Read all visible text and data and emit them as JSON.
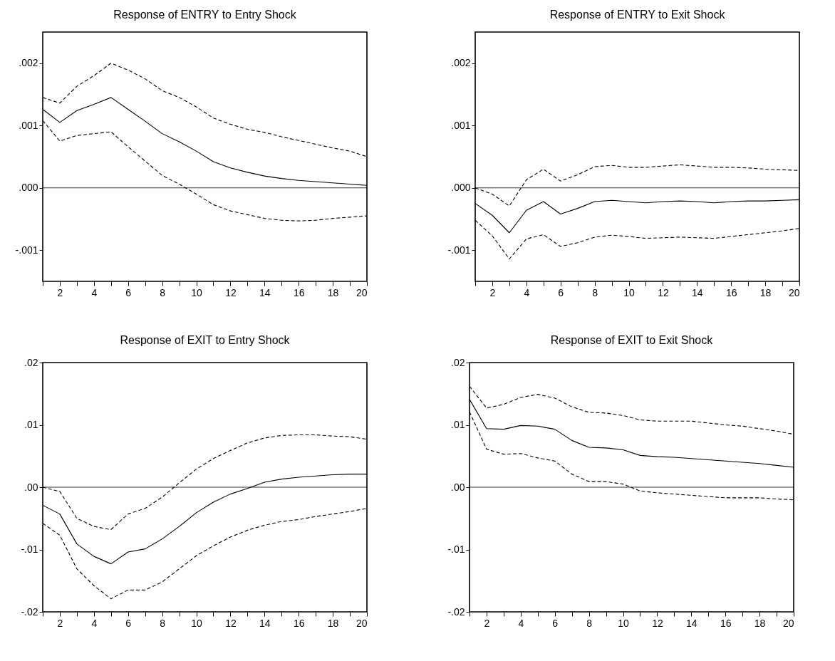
{
  "chart_data": [
    {
      "type": "line",
      "title": "Response of ENTRY to Entry Shock",
      "x": [
        1,
        2,
        3,
        4,
        5,
        6,
        7,
        8,
        9,
        10,
        11,
        12,
        13,
        14,
        15,
        16,
        17,
        18,
        19,
        20
      ],
      "xlim": [
        1,
        20
      ],
      "xticks": [
        {
          "value": 1,
          "label": null
        },
        2,
        {
          "value": 3,
          "label": null
        },
        4,
        {
          "value": 5,
          "label": null
        },
        6,
        {
          "value": 7,
          "label": null
        },
        8,
        {
          "value": 9,
          "label": null
        },
        10,
        {
          "value": 11,
          "label": null
        },
        12,
        {
          "value": 13,
          "label": null
        },
        14,
        {
          "value": 15,
          "label": null
        },
        16,
        {
          "value": 17,
          "label": null
        },
        18,
        {
          "value": 19,
          "label": null
        },
        20
      ],
      "ylim": [
        -0.0015,
        0.0025
      ],
      "yticks": [
        {
          "value": -0.001,
          "label": "-.001"
        },
        {
          "value": 0,
          "label": ".000"
        },
        {
          "value": 0.001,
          "label": ".001"
        },
        {
          "value": 0.002,
          "label": ".002"
        }
      ],
      "grid": false,
      "marker": "none",
      "ref_lines": [
        {
          "axis": "y",
          "value": 0
        }
      ],
      "series": [
        {
          "color": "#000000",
          "line_style": "solid",
          "values": [
            0.00126,
            0.00105,
            0.00124,
            0.00134,
            0.00145,
            0.00126,
            0.00107,
            0.00087,
            0.00074,
            0.00059,
            0.00042,
            0.00032,
            0.00025,
            0.00019,
            0.00015,
            0.00012,
            0.0001,
            8e-05,
            6e-05,
            4e-05
          ]
        },
        {
          "color": "#000000",
          "line_style": "dashed",
          "values": [
            0.00145,
            0.00136,
            0.00163,
            0.0018,
            0.002,
            0.00189,
            0.00175,
            0.00156,
            0.00145,
            0.0013,
            0.00112,
            0.00102,
            0.00094,
            0.00089,
            0.00082,
            0.00076,
            0.0007,
            0.00064,
            0.00059,
            0.0005
          ]
        },
        {
          "color": "#000000",
          "line_style": "dashed",
          "values": [
            0.00108,
            0.00075,
            0.00084,
            0.00087,
            0.0009,
            0.00066,
            0.00043,
            0.0002,
            6e-05,
            -0.0001,
            -0.00027,
            -0.00037,
            -0.00043,
            -0.00049,
            -0.00052,
            -0.00053,
            -0.00052,
            -0.00049,
            -0.00047,
            -0.00045
          ]
        }
      ]
    },
    {
      "type": "line",
      "title": "Response of ENTRY to Exit Shock",
      "x": [
        1,
        2,
        3,
        4,
        5,
        6,
        7,
        8,
        9,
        10,
        11,
        12,
        13,
        14,
        15,
        16,
        17,
        18,
        19,
        20
      ],
      "xlim": [
        1,
        20
      ],
      "xticks": [
        {
          "value": 1,
          "label": null
        },
        2,
        {
          "value": 3,
          "label": null
        },
        4,
        {
          "value": 5,
          "label": null
        },
        6,
        {
          "value": 7,
          "label": null
        },
        8,
        {
          "value": 9,
          "label": null
        },
        10,
        {
          "value": 11,
          "label": null
        },
        12,
        {
          "value": 13,
          "label": null
        },
        14,
        {
          "value": 15,
          "label": null
        },
        16,
        {
          "value": 17,
          "label": null
        },
        18,
        {
          "value": 19,
          "label": null
        },
        20
      ],
      "ylim": [
        -0.0015,
        0.0025
      ],
      "yticks": [
        {
          "value": -0.001,
          "label": "-.001"
        },
        {
          "value": 0,
          "label": ".000"
        },
        {
          "value": 0.001,
          "label": ".001"
        },
        {
          "value": 0.002,
          "label": ".002"
        }
      ],
      "grid": false,
      "marker": "none",
      "ref_lines": [
        {
          "axis": "y",
          "value": 0
        }
      ],
      "series": [
        {
          "color": "#000000",
          "line_style": "solid",
          "values": [
            -0.00025,
            -0.00044,
            -0.00072,
            -0.00036,
            -0.00022,
            -0.00042,
            -0.00033,
            -0.00022,
            -0.0002,
            -0.00022,
            -0.00024,
            -0.00022,
            -0.00021,
            -0.00022,
            -0.00024,
            -0.00022,
            -0.00021,
            -0.00021,
            -0.0002,
            -0.00019
          ]
        },
        {
          "color": "#000000",
          "line_style": "dashed",
          "values": [
            0,
            -0.0001,
            -0.00029,
            0.00013,
            0.0003,
            0.00011,
            0.00021,
            0.00034,
            0.00036,
            0.00033,
            0.00033,
            0.00035,
            0.00037,
            0.00035,
            0.00033,
            0.00033,
            0.00032,
            0.0003,
            0.00029,
            0.00028
          ]
        },
        {
          "color": "#000000",
          "line_style": "dashed",
          "values": [
            -0.00052,
            -0.00077,
            -0.00114,
            -0.00082,
            -0.00075,
            -0.00094,
            -0.00088,
            -0.00079,
            -0.00076,
            -0.00078,
            -0.00081,
            -0.0008,
            -0.00079,
            -0.0008,
            -0.00081,
            -0.00078,
            -0.00075,
            -0.00072,
            -0.00069,
            -0.00065
          ]
        }
      ]
    },
    {
      "type": "line",
      "title": "Response of EXIT to Entry Shock",
      "x": [
        1,
        2,
        3,
        4,
        5,
        6,
        7,
        8,
        9,
        10,
        11,
        12,
        13,
        14,
        15,
        16,
        17,
        18,
        19,
        20
      ],
      "xlim": [
        1,
        20
      ],
      "xticks": [
        {
          "value": 1,
          "label": null
        },
        2,
        {
          "value": 3,
          "label": null
        },
        4,
        {
          "value": 5,
          "label": null
        },
        6,
        {
          "value": 7,
          "label": null
        },
        8,
        {
          "value": 9,
          "label": null
        },
        10,
        {
          "value": 11,
          "label": null
        },
        12,
        {
          "value": 13,
          "label": null
        },
        14,
        {
          "value": 15,
          "label": null
        },
        16,
        {
          "value": 17,
          "label": null
        },
        18,
        {
          "value": 19,
          "label": null
        },
        20
      ],
      "ylim": [
        -0.02,
        0.02
      ],
      "yticks": [
        {
          "value": -0.02,
          "label": "-.02"
        },
        {
          "value": -0.01,
          "label": "-.01"
        },
        {
          "value": 0,
          "label": ".00"
        },
        {
          "value": 0.01,
          "label": ".01"
        },
        {
          "value": 0.02,
          "label": ".02"
        }
      ],
      "grid": false,
      "marker": "none",
      "ref_lines": [
        {
          "axis": "y",
          "value": 0
        }
      ],
      "series": [
        {
          "color": "#000000",
          "line_style": "solid",
          "values": [
            -0.0029,
            -0.0043,
            -0.0091,
            -0.0111,
            -0.0123,
            -0.0104,
            -0.0099,
            -0.0083,
            -0.0063,
            -0.0041,
            -0.0024,
            -0.0011,
            -0.0002,
            0.0008,
            0.0013,
            0.0016,
            0.0018,
            0.002,
            0.0021,
            0.0021
          ]
        },
        {
          "color": "#000000",
          "line_style": "dashed",
          "values": [
            0,
            -0.0007,
            -0.005,
            -0.0063,
            -0.0068,
            -0.0043,
            -0.0034,
            -0.0016,
            0.0007,
            0.0029,
            0.0046,
            0.0059,
            0.0071,
            0.0079,
            0.0083,
            0.0084,
            0.0084,
            0.0082,
            0.0081,
            0.0077
          ]
        },
        {
          "color": "#000000",
          "line_style": "dashed",
          "values": [
            -0.0058,
            -0.0077,
            -0.0131,
            -0.0158,
            -0.0179,
            -0.0165,
            -0.0165,
            -0.0152,
            -0.0131,
            -0.011,
            -0.0094,
            -0.008,
            -0.0069,
            -0.0061,
            -0.0055,
            -0.0052,
            -0.0047,
            -0.0043,
            -0.0039,
            -0.0034
          ]
        }
      ]
    },
    {
      "type": "line",
      "title": "Response of EXIT to Exit Shock",
      "x": [
        1,
        2,
        3,
        4,
        5,
        6,
        7,
        8,
        9,
        10,
        11,
        12,
        13,
        14,
        15,
        16,
        17,
        18,
        19,
        20
      ],
      "xlim": [
        1,
        20
      ],
      "xticks": [
        {
          "value": 1,
          "label": null
        },
        2,
        {
          "value": 3,
          "label": null
        },
        4,
        {
          "value": 5,
          "label": null
        },
        6,
        {
          "value": 7,
          "label": null
        },
        8,
        {
          "value": 9,
          "label": null
        },
        10,
        {
          "value": 11,
          "label": null
        },
        12,
        {
          "value": 13,
          "label": null
        },
        14,
        {
          "value": 15,
          "label": null
        },
        16,
        {
          "value": 17,
          "label": null
        },
        18,
        {
          "value": 19,
          "label": null
        },
        20
      ],
      "ylim": [
        -0.02,
        0.02
      ],
      "yticks": [
        {
          "value": -0.02,
          "label": "-.02"
        },
        {
          "value": -0.01,
          "label": "-.01"
        },
        {
          "value": 0,
          "label": ".00"
        },
        {
          "value": 0.01,
          "label": ".01"
        },
        {
          "value": 0.02,
          "label": ".02"
        }
      ],
      "grid": false,
      "marker": "none",
      "ref_lines": [
        {
          "axis": "y",
          "value": 0
        }
      ],
      "series": [
        {
          "color": "#000000",
          "line_style": "solid",
          "values": [
            0.0141,
            0.0094,
            0.0093,
            0.0099,
            0.0098,
            0.0093,
            0.0075,
            0.0064,
            0.0063,
            0.006,
            0.0051,
            0.0049,
            0.0048,
            0.0046,
            0.0044,
            0.0042,
            0.004,
            0.0038,
            0.0035,
            0.0032
          ]
        },
        {
          "color": "#000000",
          "line_style": "dashed",
          "values": [
            0.0162,
            0.0127,
            0.0133,
            0.0144,
            0.0149,
            0.0143,
            0.0129,
            0.012,
            0.0119,
            0.0115,
            0.0108,
            0.0106,
            0.0106,
            0.0106,
            0.0103,
            0.01,
            0.0098,
            0.0094,
            0.009,
            0.0085
          ]
        },
        {
          "color": "#000000",
          "line_style": "dashed",
          "values": [
            0.0121,
            0.0061,
            0.0053,
            0.0054,
            0.0047,
            0.0042,
            0.0021,
            0.0009,
            0.0009,
            0.0005,
            -0.0006,
            -0.0009,
            -0.0011,
            -0.0013,
            -0.0015,
            -0.0017,
            -0.0017,
            -0.0017,
            -0.0019,
            -0.002
          ]
        }
      ]
    }
  ]
}
